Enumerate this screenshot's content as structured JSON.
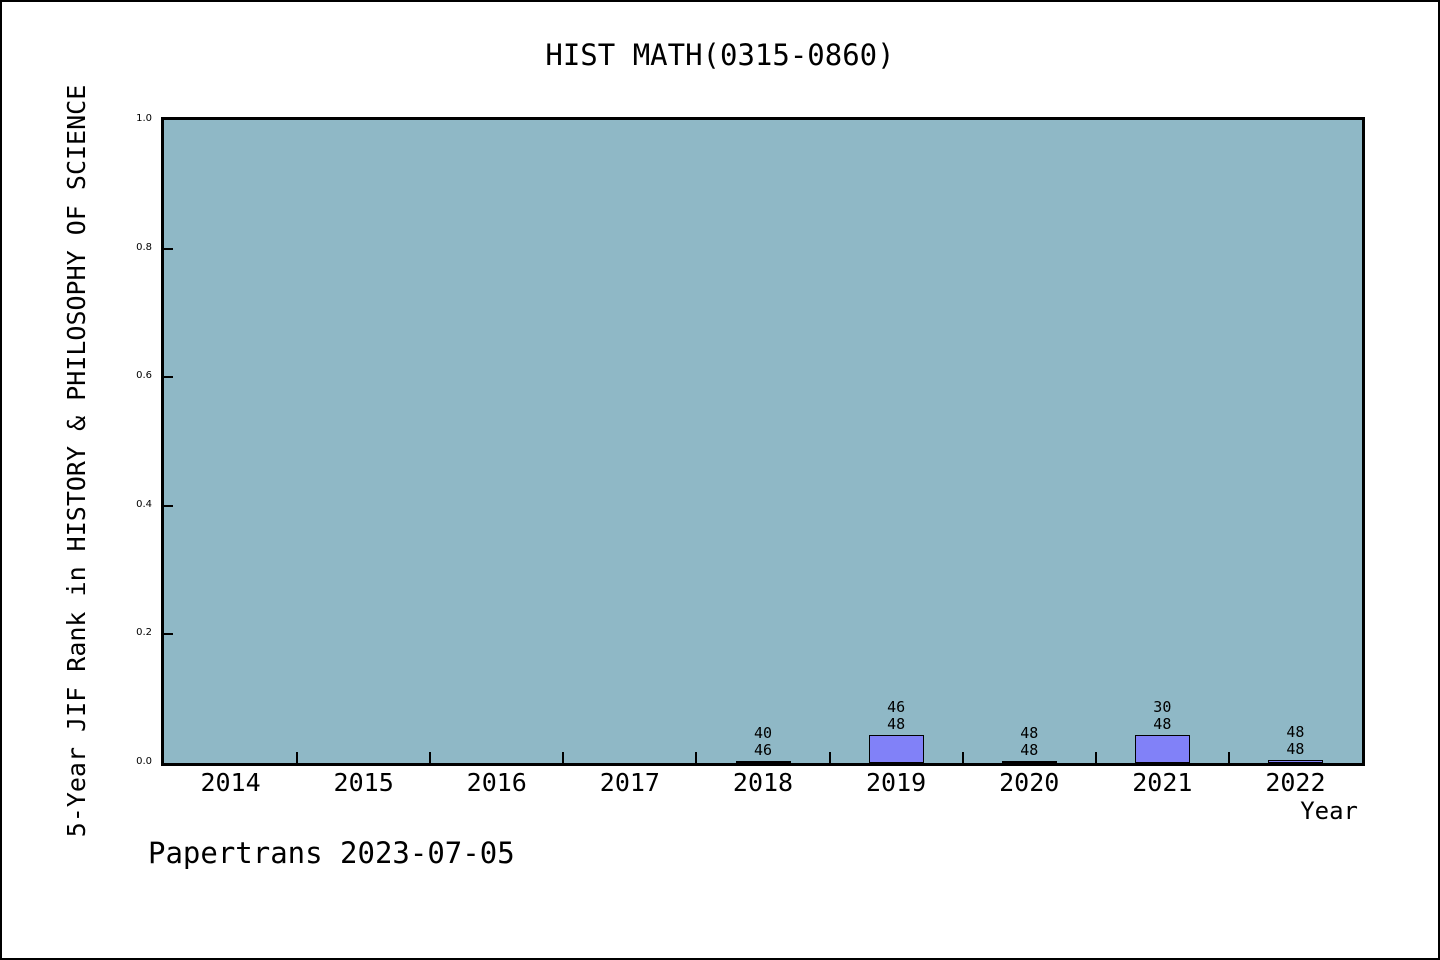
{
  "footer": {
    "text": "Papertrans 2023-07-05"
  },
  "chart_data": {
    "type": "bar",
    "title": "HIST MATH(0315-0860)",
    "xlabel": "Year",
    "ylabel": "5-Year JIF Rank in HISTORY & PHILOSOPHY OF SCIENCE",
    "categories": [
      "2014",
      "2015",
      "2016",
      "2017",
      "2018",
      "2019",
      "2020",
      "2021",
      "2022"
    ],
    "values": [
      null,
      null,
      null,
      null,
      0.003,
      0.044,
      0.003,
      0.044,
      0.005
    ],
    "bar_labels": [
      null,
      null,
      null,
      null,
      [
        "40",
        "46"
      ],
      [
        "46",
        "48"
      ],
      [
        "48",
        "48"
      ],
      [
        "30",
        "48"
      ],
      [
        "48",
        "48"
      ]
    ],
    "bar_label_meaning": "rank over total journals in category",
    "ylim": [
      0,
      1
    ],
    "yticks": [
      0.0,
      0.2,
      0.4,
      0.6,
      0.8,
      1.0
    ],
    "ytick_labels": [
      "0.0",
      "0.2",
      "0.4",
      "0.6",
      "0.8",
      "1.0"
    ],
    "grid": false,
    "legend": null,
    "colors": {
      "plot_bg": "#8fb8c6",
      "bar_fill": "#8181f8",
      "bar_edge": "#000000",
      "axis": "#000000",
      "figure_bg": "#ffffff"
    }
  }
}
